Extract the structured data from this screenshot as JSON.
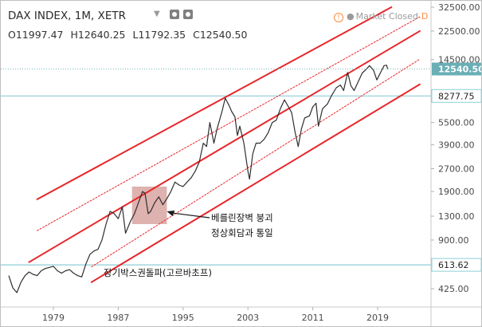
{
  "header": {
    "title": "DAX INDEX, 1M, XETR",
    "ohlc": {
      "open": "O11997.47",
      "high": "H12640.25",
      "low": "L11792.35",
      "close": "C12540.50"
    },
    "market_status": "Market Closed",
    "market_status_letter": "D"
  },
  "chart_data": {
    "type": "line",
    "title": "DAX INDEX, 1M, XETR",
    "xlabel": "",
    "ylabel": "",
    "y_scale": "log",
    "ylim": [
      330,
      32500
    ],
    "xlim": [
      1973.5,
      2025.5
    ],
    "x_ticks": [
      "1979",
      "1987",
      "1995",
      "2003",
      "2011",
      "2019"
    ],
    "y_ticks": [
      "32500.00",
      "22500.00",
      "14500.00",
      "8277.75",
      "5500.00",
      "3900.00",
      "2700.00",
      "1900.00",
      "1300.00",
      "900.00",
      "613.62",
      "425.00"
    ],
    "last_price_label": "12540.50",
    "last_price": 12540.5,
    "horizontal_levels": [
      {
        "label": "8277.75",
        "value": 8277.75,
        "color": "#8ccfd8"
      },
      {
        "label": "613.62",
        "value": 613.62,
        "color": "#8ccfd8"
      }
    ],
    "series": [
      {
        "color": "#2e2e2e",
        "points": [
          [
            1973.5,
            520
          ],
          [
            1974.0,
            430
          ],
          [
            1974.5,
            400
          ],
          [
            1975.0,
            470
          ],
          [
            1975.5,
            520
          ],
          [
            1976.0,
            550
          ],
          [
            1976.5,
            530
          ],
          [
            1977.0,
            520
          ],
          [
            1977.5,
            560
          ],
          [
            1978.0,
            580
          ],
          [
            1978.5,
            590
          ],
          [
            1979.0,
            600
          ],
          [
            1979.5,
            560
          ],
          [
            1980.0,
            540
          ],
          [
            1980.5,
            560
          ],
          [
            1981.0,
            570
          ],
          [
            1981.5,
            540
          ],
          [
            1982.0,
            520
          ],
          [
            1982.5,
            510
          ],
          [
            1983.0,
            620
          ],
          [
            1983.5,
            720
          ],
          [
            1984.0,
            760
          ],
          [
            1984.5,
            780
          ],
          [
            1985.0,
            900
          ],
          [
            1985.5,
            1150
          ],
          [
            1986.0,
            1400
          ],
          [
            1986.5,
            1350
          ],
          [
            1987.0,
            1250
          ],
          [
            1987.5,
            1500
          ],
          [
            1987.9,
            1000
          ],
          [
            1988.5,
            1200
          ],
          [
            1989.0,
            1350
          ],
          [
            1989.5,
            1600
          ],
          [
            1990.0,
            1900
          ],
          [
            1990.3,
            1850
          ],
          [
            1990.7,
            1350
          ],
          [
            1991.0,
            1400
          ],
          [
            1991.5,
            1600
          ],
          [
            1992.0,
            1750
          ],
          [
            1992.5,
            1550
          ],
          [
            1993.0,
            1700
          ],
          [
            1993.5,
            1900
          ],
          [
            1994.0,
            2200
          ],
          [
            1994.5,
            2100
          ],
          [
            1995.0,
            2050
          ],
          [
            1995.5,
            2200
          ],
          [
            1996.0,
            2350
          ],
          [
            1996.5,
            2600
          ],
          [
            1997.0,
            3000
          ],
          [
            1997.5,
            4000
          ],
          [
            1997.9,
            3800
          ],
          [
            1998.3,
            5500
          ],
          [
            1998.8,
            4000
          ],
          [
            1999.2,
            5000
          ],
          [
            1999.8,
            6500
          ],
          [
            2000.2,
            8000
          ],
          [
            2000.7,
            7100
          ],
          [
            2001.0,
            6500
          ],
          [
            2001.4,
            6000
          ],
          [
            2001.7,
            4500
          ],
          [
            2002.0,
            5200
          ],
          [
            2002.5,
            4000
          ],
          [
            2003.0,
            2600
          ],
          [
            2003.2,
            2300
          ],
          [
            2003.6,
            3400
          ],
          [
            2004.0,
            4000
          ],
          [
            2004.5,
            4000
          ],
          [
            2005.0,
            4250
          ],
          [
            2005.5,
            4700
          ],
          [
            2006.0,
            5500
          ],
          [
            2006.5,
            5700
          ],
          [
            2007.0,
            6800
          ],
          [
            2007.5,
            7800
          ],
          [
            2008.0,
            7000
          ],
          [
            2008.4,
            6400
          ],
          [
            2008.8,
            4800
          ],
          [
            2009.2,
            3800
          ],
          [
            2009.6,
            5000
          ],
          [
            2010.0,
            5900
          ],
          [
            2010.6,
            6100
          ],
          [
            2011.0,
            7000
          ],
          [
            2011.4,
            7400
          ],
          [
            2011.7,
            5200
          ],
          [
            2012.2,
            6800
          ],
          [
            2012.8,
            7300
          ],
          [
            2013.3,
            8300
          ],
          [
            2013.9,
            9400
          ],
          [
            2014.4,
            9800
          ],
          [
            2014.8,
            9000
          ],
          [
            2015.3,
            11900
          ],
          [
            2015.7,
            9700
          ],
          [
            2016.1,
            9000
          ],
          [
            2016.6,
            10300
          ],
          [
            2017.1,
            11800
          ],
          [
            2017.6,
            12500
          ],
          [
            2018.0,
            13200
          ],
          [
            2018.5,
            12300
          ],
          [
            2018.9,
            10600
          ],
          [
            2019.4,
            12000
          ],
          [
            2019.8,
            13200
          ],
          [
            2020.1,
            13300
          ],
          [
            2020.25,
            12540
          ]
        ]
      }
    ],
    "trend_lines": [
      {
        "style": "solid",
        "color": "#e8262a",
        "from": [
          1977.0,
          1685
        ],
        "to": [
          2020.7,
          32500
        ]
      },
      {
        "style": "solid",
        "color": "#e8262a",
        "from": [
          1976.0,
          640
        ],
        "to": [
          2024.2,
          22500
        ]
      },
      {
        "style": "solid",
        "color": "#e8262a",
        "from": [
          1983.7,
          470
        ],
        "to": [
          2024.2,
          9900
        ]
      },
      {
        "style": "dotted",
        "color": "#e8262a",
        "from": [
          1977.0,
          1040
        ],
        "to": [
          2024.2,
          28000
        ]
      },
      {
        "style": "dotted",
        "color": "#e8262a",
        "from": [
          1983.7,
          595
        ],
        "to": [
          2024.2,
          14600
        ]
      }
    ],
    "highlight_box": {
      "x": [
        1988.7,
        1993.0
      ],
      "y": [
        1150,
        2050
      ],
      "color": "#b5544e"
    },
    "annotations": [
      {
        "lines": [
          "베를린장벽 붕괴",
          "정상회담과 통일"
        ],
        "point_to": [
          1993.0,
          1400
        ]
      },
      {
        "lines": [
          "장기박스권돌파(고르바초프)"
        ]
      }
    ]
  }
}
